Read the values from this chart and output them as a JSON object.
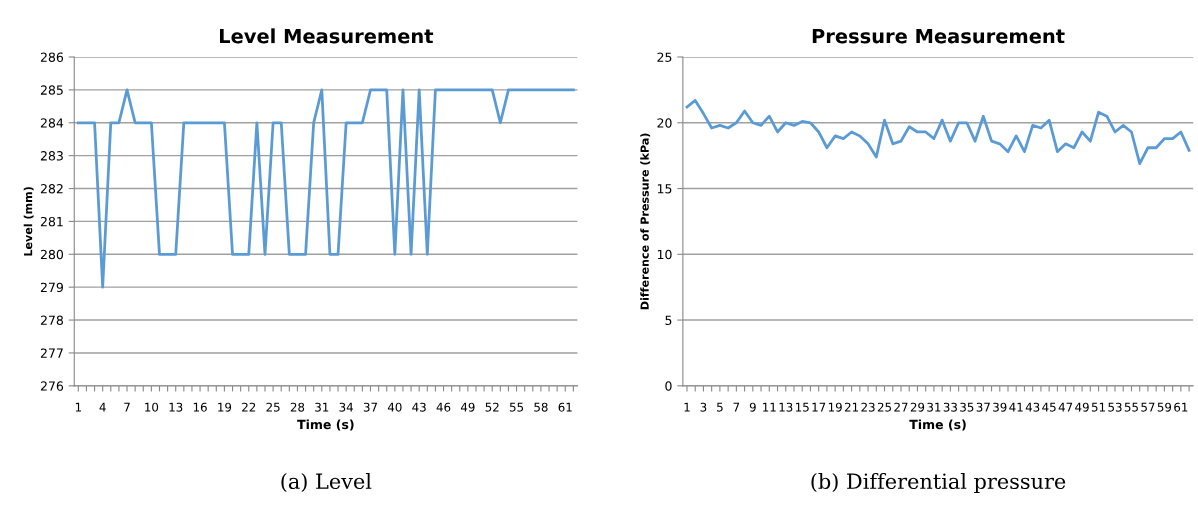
{
  "chart_data": [
    {
      "type": "line",
      "title": "Level Measurement",
      "xlabel": "Time (s)",
      "ylabel": "Level (mm)",
      "categories": [
        "1",
        null,
        null,
        "4",
        null,
        null,
        "7",
        null,
        null,
        "10",
        null,
        null,
        "13",
        null,
        null,
        "16",
        null,
        null,
        "19",
        null,
        null,
        "22",
        null,
        null,
        "25",
        null,
        null,
        "28",
        null,
        null,
        "31",
        null,
        null,
        "34",
        null,
        null,
        "37",
        null,
        null,
        "40",
        null,
        null,
        "43",
        null,
        null,
        "46",
        null,
        null,
        "49",
        null,
        null,
        "52",
        null,
        null,
        "55",
        null,
        null,
        "58",
        null,
        null,
        "61",
        null
      ],
      "series": [
        {
          "color": "#5b9bd5",
          "values": [
            284,
            284,
            284,
            279,
            284,
            284,
            285,
            284,
            284,
            284,
            280,
            280,
            280,
            284,
            284,
            284,
            284,
            284,
            284,
            280,
            280,
            280,
            284,
            280,
            284,
            284,
            280,
            280,
            280,
            284,
            285,
            280,
            280,
            284,
            284,
            284,
            285,
            285,
            285,
            280,
            285,
            280,
            285,
            280,
            285,
            285,
            285,
            285,
            285,
            285,
            285,
            285,
            284,
            285,
            285,
            285,
            285,
            285,
            285,
            285,
            285,
            285
          ]
        }
      ],
      "ylim": [
        276,
        286
      ],
      "yticks": [
        276,
        277,
        278,
        279,
        280,
        281,
        282,
        283,
        284,
        285,
        286
      ],
      "grid": "y",
      "marker": "none",
      "line_style": "solid",
      "legend": false,
      "annotations": [
        "(a) Level"
      ]
    },
    {
      "type": "line",
      "title": "Pressure Measurement",
      "xlabel": "Time (s)",
      "ylabel": "Difference of Pressure (kPa)",
      "categories": [
        "1",
        null,
        "3",
        null,
        "5",
        null,
        "7",
        null,
        "9",
        null,
        "11",
        null,
        "13",
        null,
        "15",
        null,
        "17",
        null,
        "19",
        null,
        "21",
        null,
        "23",
        null,
        "25",
        null,
        "27",
        null,
        "29",
        null,
        "31",
        null,
        "33",
        null,
        "35",
        null,
        "37",
        null,
        "39",
        null,
        "41",
        null,
        "43",
        null,
        "45",
        null,
        "47",
        null,
        "49",
        null,
        "51",
        null,
        "53",
        null,
        "55",
        null,
        "57",
        null,
        "59",
        null,
        "61",
        null
      ],
      "series": [
        {
          "color": "#5b9bd5",
          "values": [
            21.2,
            21.7,
            20.7,
            19.6,
            19.8,
            19.6,
            20.0,
            20.9,
            20.0,
            19.8,
            20.5,
            19.3,
            20.0,
            19.8,
            20.1,
            20.0,
            19.3,
            18.1,
            19.0,
            18.8,
            19.3,
            19.0,
            18.4,
            17.4,
            20.2,
            18.4,
            18.6,
            19.7,
            19.3,
            19.3,
            18.8,
            20.2,
            18.6,
            20.0,
            20.0,
            18.6,
            20.5,
            18.6,
            18.4,
            17.8,
            19.0,
            17.8,
            19.8,
            19.6,
            20.2,
            17.8,
            18.4,
            18.1,
            19.3,
            18.6,
            20.8,
            20.5,
            19.3,
            19.8,
            19.3,
            16.9,
            18.1,
            18.1,
            18.8,
            18.8,
            19.3,
            17.9
          ]
        }
      ],
      "ylim": [
        0,
        25
      ],
      "yticks": [
        0,
        5,
        10,
        15,
        20,
        25
      ],
      "grid": "y",
      "marker": "none",
      "line_style": "solid",
      "legend": false,
      "annotations": [
        "(b) Differential pressure"
      ]
    }
  ]
}
